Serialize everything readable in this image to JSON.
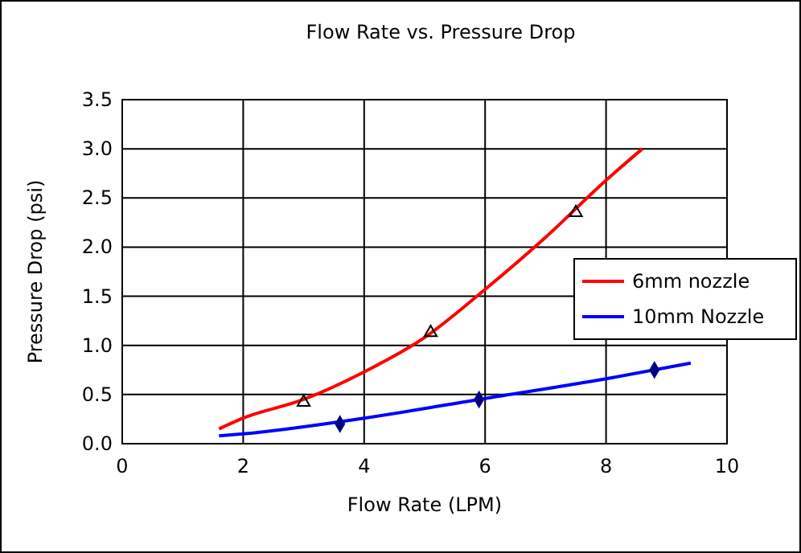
{
  "chart_data": {
    "type": "line",
    "title": "Flow Rate vs. Pressure Drop",
    "xlabel": "Flow Rate (LPM)",
    "ylabel": "Pressure Drop (psi)",
    "xlim": [
      0,
      10
    ],
    "xticks": [
      0,
      2,
      4,
      6,
      8,
      10
    ],
    "ylim": [
      0,
      3.5
    ],
    "yticks": [
      {
        "value": 0,
        "label": "0.0"
      },
      {
        "value": 0.5,
        "label": "0.5"
      },
      {
        "value": 1,
        "label": "1.0"
      },
      {
        "value": 1.5,
        "label": "1.5"
      },
      {
        "value": 2,
        "label": "2.0"
      },
      {
        "value": 2.5,
        "label": "2.5"
      },
      {
        "value": 3,
        "label": "3.0"
      },
      {
        "value": 3.5,
        "label": "3.5"
      }
    ],
    "grid": true,
    "legend": "right",
    "line_style": "solid",
    "series": [
      {
        "name": "6mm nozzle",
        "color": "#ff0000",
        "x": [
          1.6,
          2,
          3,
          4,
          5,
          6,
          7,
          8,
          8.6
        ],
        "values": [
          0.15,
          0.26,
          0.45,
          0.73,
          1.08,
          1.57,
          2.1,
          2.68,
          3.0
        ]
      },
      {
        "name": "10mm Nozzle",
        "color": "#0000ff",
        "x": [
          1.6,
          2,
          4,
          6,
          8,
          9.4
        ],
        "values": [
          0.08,
          0.1,
          0.26,
          0.46,
          0.66,
          0.82
        ]
      },
      {
        "type": "scatter",
        "marker": "triangle",
        "color": "#000000",
        "x": [
          3.0,
          5.1,
          7.5
        ],
        "values": [
          0.42,
          1.13,
          2.35
        ]
      },
      {
        "type": "scatter",
        "marker": "diamond",
        "color": "#000080",
        "x": [
          3.6,
          5.9,
          8.8
        ],
        "values": [
          0.2,
          0.45,
          0.75
        ]
      }
    ]
  }
}
